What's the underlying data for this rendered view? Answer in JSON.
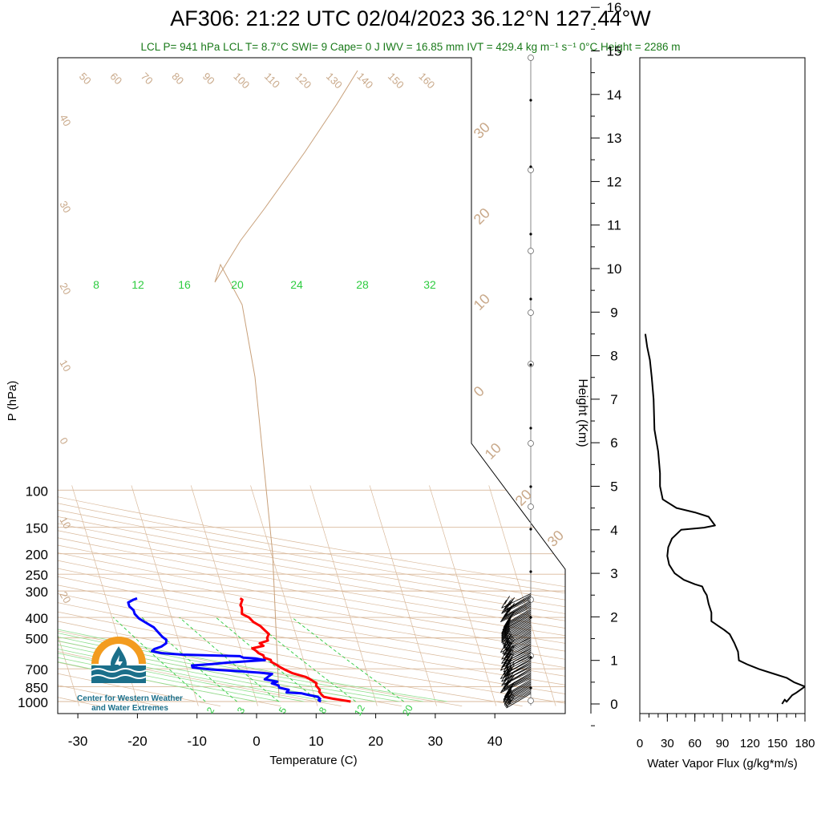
{
  "header": {
    "title": "AF306: 21:22 UTC 02/04/2023  36.12°N 127.44°W",
    "subtitle": "LCL P= 941 hPa  LCL T= 8.7°C  SWI= 9  Cape= 0 J  IWV = 16.85 mm  IVT = 429.4 kg m⁻¹ s⁻¹  0°C Height = 2286 m"
  },
  "logo": {
    "line1": "Center for Western Weather",
    "line2": "and Water Extremes"
  },
  "colors": {
    "temperature": "#ff0000",
    "dewpoint": "#0000ff",
    "isotherm_dryadiabat": "#d9b99b",
    "mixing_ratio": "#2ecc40",
    "moist_adiabat": "#8fe08f",
    "flux": "#000000",
    "logo_orange": "#f39c1f",
    "logo_teal": "#1b6f8a"
  },
  "chart_data": [
    {
      "type": "line",
      "subtype": "skew-t log-p",
      "xlabel": "Temperature (C)",
      "ylabel": "P (hPa)",
      "right_label": "Height (Km)",
      "x_ticks": [
        -30,
        -20,
        -10,
        0,
        10,
        20,
        30,
        40
      ],
      "y_ticks": [
        100,
        150,
        200,
        250,
        300,
        400,
        500,
        700,
        850,
        1000
      ],
      "height_ticks": [
        0,
        1,
        2,
        3,
        4,
        5,
        6,
        7,
        8,
        9,
        10,
        11,
        12,
        13,
        14,
        15,
        16
      ],
      "isotherm_labels": [
        "50",
        "60",
        "70",
        "80",
        "90",
        "100",
        "110",
        "120",
        "130",
        "140",
        "150",
        "160"
      ],
      "left_dry_adiabat_labels": [
        "40",
        "30",
        "20",
        "10",
        "0",
        "10",
        "20"
      ],
      "right_temp_labels": [
        "30",
        "20",
        "10",
        "0",
        "10",
        "20",
        "30"
      ],
      "mixing_ratio_labels_top": [
        "8",
        "12",
        "16",
        "20",
        "24",
        "28",
        "32"
      ],
      "mixing_ratio_labels_bottom": [
        "2",
        "3",
        "5",
        "8",
        "12",
        "20"
      ],
      "series": [
        {
          "name": "Temperature",
          "points": [
            [
              15.8,
              1000
            ],
            [
              14.5,
              985
            ],
            [
              13,
              970
            ],
            [
              11.5,
              950
            ],
            [
              11.3,
              930
            ],
            [
              11,
              900
            ],
            [
              11.2,
              880
            ],
            [
              11,
              860
            ],
            [
              10.8,
              840
            ],
            [
              11,
              820
            ],
            [
              10.5,
              800
            ],
            [
              10,
              780
            ],
            [
              9.5,
              765
            ],
            [
              8.5,
              750
            ],
            [
              7.5,
              735
            ],
            [
              6.5,
              710
            ],
            [
              5.8,
              690
            ],
            [
              5.2,
              670
            ],
            [
              4.5,
              650
            ],
            [
              4.5,
              635
            ],
            [
              3.5,
              620
            ],
            [
              3.5,
              605
            ],
            [
              2.8,
              590
            ],
            [
              2.5,
              575
            ],
            [
              2,
              560
            ],
            [
              4,
              545
            ],
            [
              3.5,
              530
            ],
            [
              5,
              515
            ],
            [
              5,
              500
            ],
            [
              5.5,
              480
            ],
            [
              5,
              460
            ],
            [
              4.5,
              440
            ],
            [
              3.5,
              420
            ],
            [
              3,
              400
            ],
            [
              2,
              385
            ],
            [
              2.2,
              370
            ],
            [
              2.3,
              360
            ],
            [
              2.2,
              350
            ],
            [
              2.5,
              340
            ],
            [
              2.8,
              330
            ],
            [
              2.5,
              325
            ]
          ]
        },
        {
          "name": "Dewpoint",
          "points": [
            [
              10.8,
              1000
            ],
            [
              10.5,
              985
            ],
            [
              10.8,
              970
            ],
            [
              10.5,
              950
            ],
            [
              9,
              930
            ],
            [
              8,
              915
            ],
            [
              5.5,
              905
            ],
            [
              6,
              880
            ],
            [
              4.5,
              860
            ],
            [
              4.5,
              840
            ],
            [
              3.5,
              820
            ],
            [
              4.5,
              805
            ],
            [
              2.5,
              785
            ],
            [
              3,
              770
            ],
            [
              3.5,
              755
            ],
            [
              4,
              740
            ],
            [
              2,
              730
            ],
            [
              -1,
              720
            ],
            [
              -6,
              705
            ],
            [
              -9,
              690
            ],
            [
              -9,
              675
            ],
            [
              -5.5,
              665
            ],
            [
              -3,
              655
            ],
            [
              0.5,
              645
            ],
            [
              3.5,
              637
            ],
            [
              2,
              625
            ],
            [
              0,
              620
            ],
            [
              -0.5,
              610
            ],
            [
              -10,
              600
            ],
            [
              -13.5,
              590
            ],
            [
              -15,
              578
            ],
            [
              -14.5,
              565
            ],
            [
              -13.2,
              550
            ],
            [
              -12.2,
              530
            ],
            [
              -12,
              510
            ],
            [
              -12.5,
              495
            ],
            [
              -13,
              470
            ],
            [
              -13.5,
              445
            ],
            [
              -14.5,
              425
            ],
            [
              -15.5,
              405
            ],
            [
              -16,
              385
            ],
            [
              -16,
              370
            ],
            [
              -16.5,
              355
            ],
            [
              -16.5,
              340
            ],
            [
              -15.5,
              330
            ],
            [
              -14.8,
              325
            ]
          ]
        },
        {
          "name": "Water Vapor Flux",
          "xlabel": "Water Vapor Flux (g/kg*m/s)",
          "x_ticks": [
            0,
            30,
            60,
            90,
            120,
            150,
            180
          ],
          "xlim": [
            0,
            180
          ],
          "ylim_km": [
            0,
            16.5
          ],
          "points": [
            [
              155,
              0
            ],
            [
              158,
              0.1
            ],
            [
              160,
              0.05
            ],
            [
              166,
              0.2
            ],
            [
              170,
              0.25
            ],
            [
              180,
              0.4
            ],
            [
              168,
              0.5
            ],
            [
              160,
              0.6
            ],
            [
              145,
              0.7
            ],
            [
              130,
              0.8
            ],
            [
              118,
              0.9
            ],
            [
              108,
              1.0
            ],
            [
              107,
              1.2
            ],
            [
              103,
              1.4
            ],
            [
              98,
              1.6
            ],
            [
              92,
              1.7
            ],
            [
              85,
              1.8
            ],
            [
              78,
              1.9
            ],
            [
              78,
              2.1
            ],
            [
              75,
              2.3
            ],
            [
              73,
              2.5
            ],
            [
              70,
              2.6
            ],
            [
              68,
              2.7
            ],
            [
              60,
              2.75
            ],
            [
              48,
              2.85
            ],
            [
              38,
              3.0
            ],
            [
              32,
              3.2
            ],
            [
              30,
              3.4
            ],
            [
              31,
              3.6
            ],
            [
              35,
              3.8
            ],
            [
              45,
              4.0
            ],
            [
              70,
              4.05
            ],
            [
              82,
              4.1
            ],
            [
              75,
              4.3
            ],
            [
              60,
              4.4
            ],
            [
              40,
              4.5
            ],
            [
              25,
              4.7
            ],
            [
              22,
              5.0
            ],
            [
              22,
              5.3
            ],
            [
              20,
              5.8
            ],
            [
              16,
              6.3
            ],
            [
              15,
              7.0
            ],
            [
              13,
              7.5
            ],
            [
              11,
              7.9
            ],
            [
              8,
              8.2
            ],
            [
              6,
              8.5
            ]
          ]
        },
        {
          "name": "Wind",
          "pressure_range_hPa": [
            1000,
            330
          ],
          "note": "wind barbs plotted along right edge of skew-T"
        }
      ]
    }
  ]
}
